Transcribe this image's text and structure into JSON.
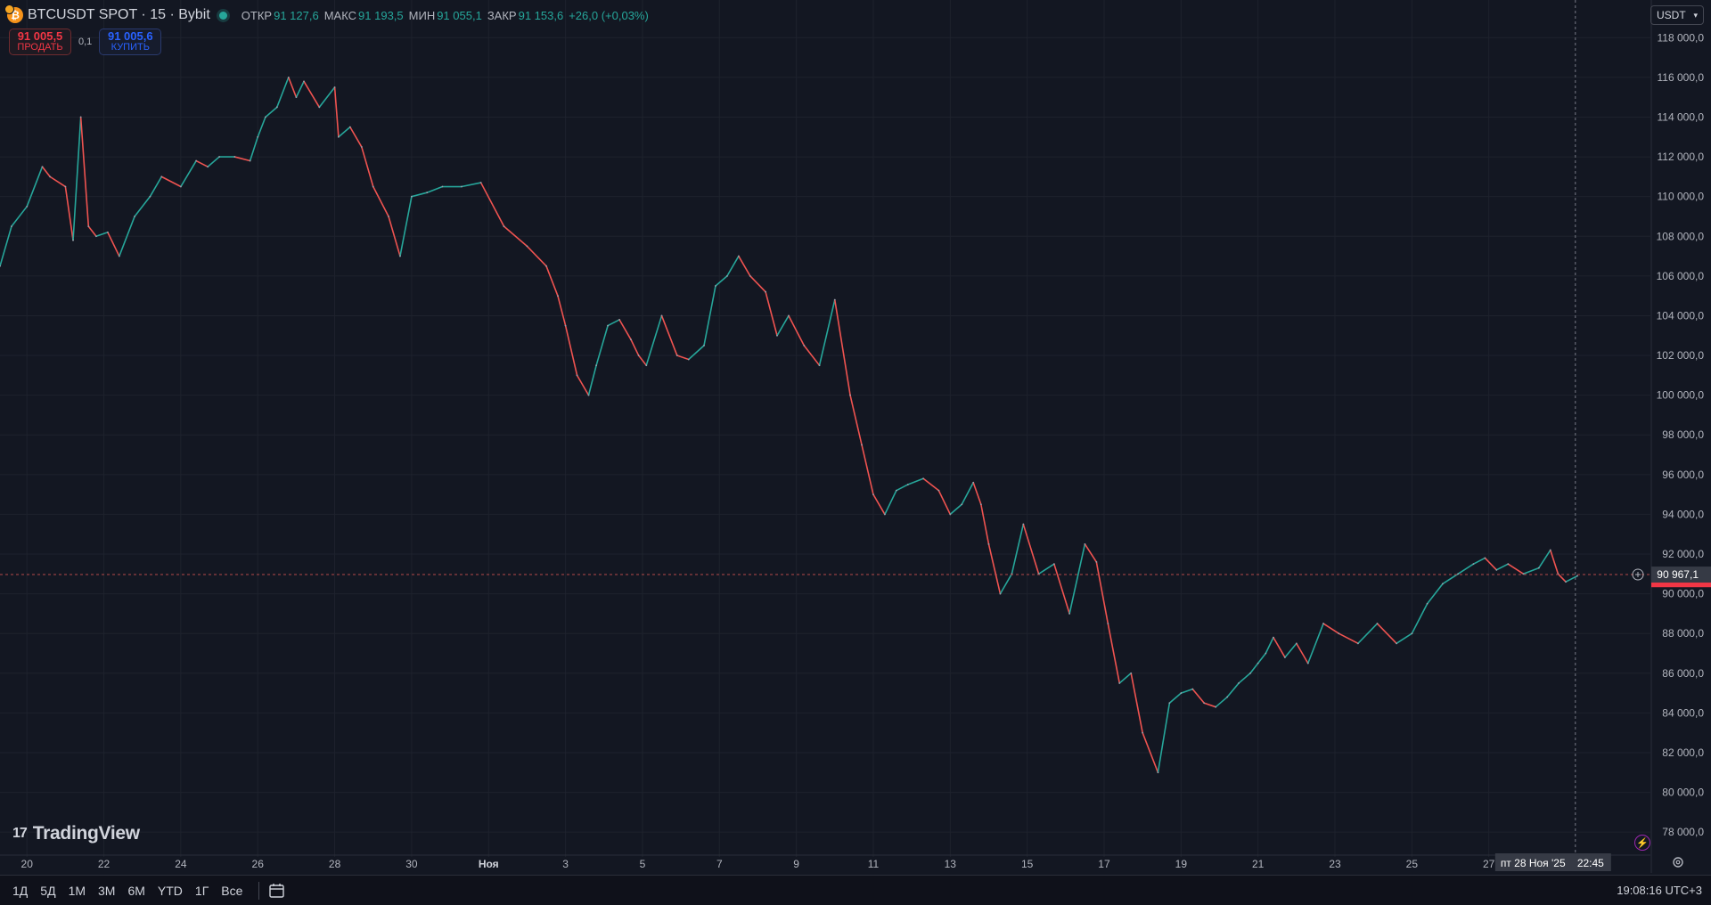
{
  "header": {
    "symbol": "BTCUSDT SPOT · 15 · Bybit",
    "ohlc": [
      {
        "label": "ОТКР",
        "value": "91 127,6"
      },
      {
        "label": "МАКС",
        "value": "91 193,5"
      },
      {
        "label": "МИН",
        "value": "91 055,1"
      },
      {
        "label": "ЗАКР",
        "value": "91 153,6"
      }
    ],
    "change": "+26,0 (+0,03%)"
  },
  "trade": {
    "sell_price": "91 005,5",
    "sell_label": "ПРОДАТЬ",
    "spread": "0,1",
    "buy_price": "91 005,6",
    "buy_label": "КУПИТЬ"
  },
  "currency": "USDT",
  "brand": "TradingView",
  "bottom_bar": {
    "ranges": [
      "1Д",
      "5Д",
      "1М",
      "3М",
      "6М",
      "YTD",
      "1Г",
      "Все"
    ],
    "clock": "19:08:16 UTC+3"
  },
  "crosshair": {
    "date_label": "пт 28 Ноя '25",
    "time_label": "22:45",
    "price_label": "90 967,1",
    "price": 90967.1
  },
  "last_price": 90600,
  "colors": {
    "background": "#131722",
    "up": "#26a69a",
    "down": "#ef5350",
    "grid": "#1e222d",
    "text": "#d1d4dc",
    "last_price": "#f23645"
  },
  "chart_data": {
    "type": "line",
    "title": "BTCUSDT SPOT · 15 · Bybit",
    "xlabel": "",
    "ylabel": "",
    "y_ticks": [
      78000,
      80000,
      82000,
      84000,
      86000,
      88000,
      90000,
      92000,
      94000,
      96000,
      98000,
      100000,
      102000,
      104000,
      106000,
      108000,
      110000,
      112000,
      114000,
      116000,
      118000
    ],
    "y_tick_labels": [
      "78 000,0",
      "80 000,0",
      "82 000,0",
      "84 000,0",
      "86 000,0",
      "88 000,0",
      "90 000,0",
      "92 000,0",
      "94 000,0",
      "96 000,0",
      "98 000,0",
      "100 000,0",
      "102 000,0",
      "104 000,0",
      "106 000,0",
      "108 000,0",
      "110 000,0",
      "112 000,0",
      "114 000,0",
      "116 000,0",
      "118 000,0"
    ],
    "x_ticks": [
      "20",
      "22",
      "24",
      "26",
      "28",
      "30",
      "Ноя",
      "3",
      "5",
      "7",
      "9",
      "11",
      "13",
      "15",
      "17",
      "19",
      "21",
      "23",
      "25",
      "27"
    ],
    "x_tick_days": [
      -11,
      -9,
      -7,
      -5,
      -3,
      -1,
      1,
      3,
      5,
      7,
      9,
      11,
      13,
      15,
      17,
      19,
      21,
      23,
      25,
      27
    ],
    "x_range_days": [
      -11.7,
      31.2
    ],
    "ylim": [
      77200,
      119000
    ],
    "series": [
      {
        "x_days": [
          -11.7,
          -11.4,
          -11.0,
          -10.6,
          -10.4,
          -10.0,
          -9.8,
          -9.6,
          -9.4,
          -9.2,
          -8.9,
          -8.6,
          -8.2,
          -7.8,
          -7.5,
          -7.0,
          -6.6,
          -6.3,
          -6.0,
          -5.6,
          -5.2,
          -5.0,
          -4.8,
          -4.5,
          -4.2,
          -4.0,
          -3.8,
          -3.4,
          -3.0,
          -2.9,
          -2.6,
          -2.3,
          -2.0,
          -1.6,
          -1.3,
          -1.0,
          -0.6,
          -0.2,
          0.3,
          0.8,
          1.4,
          2.0,
          2.5,
          2.8,
          3.0,
          3.3,
          3.6,
          3.8,
          4.1,
          4.4,
          4.7,
          4.9,
          5.1,
          5.5,
          5.9,
          6.2,
          6.6,
          6.9,
          7.2,
          7.5,
          7.8,
          8.2,
          8.5,
          8.8,
          9.2,
          9.6,
          10.0,
          10.4,
          10.7,
          11.0,
          11.3,
          11.6,
          11.9,
          12.3,
          12.7,
          13.0,
          13.3,
          13.6,
          13.8,
          14.0,
          14.3,
          14.6,
          14.9,
          15.3,
          15.7,
          16.1,
          16.5,
          16.8,
          17.1,
          17.4,
          17.7,
          18.0,
          18.4,
          18.7,
          19.0,
          19.3,
          19.6,
          19.9,
          20.2,
          20.5,
          20.8,
          21.0,
          21.2,
          21.4,
          21.7,
          22.0,
          22.3,
          22.7,
          23.1,
          23.6,
          24.1,
          24.6,
          25.0,
          25.4,
          25.8,
          26.2,
          26.6,
          26.9,
          27.2,
          27.5,
          27.9,
          28.3,
          28.6,
          28.8,
          29.0,
          29.3
        ],
        "values": [
          106500,
          108500,
          109500,
          111500,
          111000,
          110500,
          107800,
          114000,
          108500,
          108000,
          108200,
          107000,
          109000,
          110000,
          111000,
          110500,
          111800,
          111500,
          112000,
          112000,
          111800,
          113000,
          114000,
          114500,
          116000,
          115000,
          115800,
          114500,
          115500,
          113000,
          113500,
          112500,
          110500,
          109000,
          107000,
          110000,
          110200,
          110500,
          110500,
          110700,
          108500,
          107500,
          106500,
          105000,
          103500,
          101000,
          100000,
          101500,
          103500,
          103800,
          102800,
          102000,
          101500,
          104000,
          102000,
          101800,
          102500,
          105500,
          106000,
          107000,
          106000,
          105200,
          103000,
          104000,
          102500,
          101500,
          104800,
          100000,
          97500,
          95000,
          94000,
          95200,
          95500,
          95800,
          95200,
          94000,
          94500,
          95600,
          94500,
          92500,
          90000,
          91000,
          93500,
          91000,
          91500,
          89000,
          92500,
          91600,
          88500,
          85500,
          86000,
          83000,
          81000,
          84500,
          85000,
          85200,
          84500,
          84300,
          84800,
          85500,
          86000,
          86500,
          87000,
          87800,
          86800,
          87500,
          86500,
          88500,
          88000,
          87500,
          88500,
          87500,
          88000,
          89500,
          90500,
          91000,
          91500,
          91800,
          91200,
          91500,
          91000,
          91300,
          92200,
          91000,
          90600,
          90900
        ]
      }
    ]
  }
}
